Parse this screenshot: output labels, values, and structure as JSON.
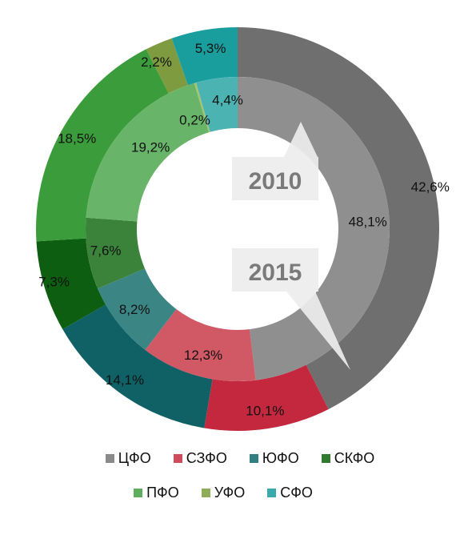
{
  "chart_data": {
    "type": "pie",
    "subtype": "nested-donut",
    "categories": [
      "ЦФО",
      "СЗФО",
      "ЮФО",
      "СКФО",
      "ПФО",
      "УФО",
      "СФО"
    ],
    "colors": {
      "outer": [
        "#706f6f",
        "#c3283e",
        "#0f6166",
        "#0d5e10",
        "#3a9c3a",
        "#7f9b3f",
        "#199d9d"
      ],
      "inner": [
        "#8f8f8f",
        "#d15865",
        "#3b8585",
        "#3b833b",
        "#68b468",
        "#a7c46d",
        "#4cb3b3"
      ],
      "legend": [
        "#8a8a8a",
        "#cd4b5b",
        "#327f82",
        "#2f7a2f",
        "#5eae5e",
        "#8fac59",
        "#3aa9ab"
      ]
    },
    "series": [
      {
        "name": "2015",
        "ring": "outer",
        "values": [
          42.6,
          10.1,
          14.1,
          7.3,
          18.5,
          2.2,
          5.3
        ],
        "labels": [
          "42,6%",
          "10,1%",
          "14,1%",
          "7,3%",
          "18,5%",
          "2,2%",
          "5,3%"
        ]
      },
      {
        "name": "2010",
        "ring": "inner",
        "values": [
          48.1,
          12.3,
          8.2,
          7.6,
          19.2,
          0.2,
          4.4
        ],
        "labels": [
          "48,1%",
          "12,3%",
          "8,2%",
          "7,6%",
          "19,2%",
          "0,2%",
          "4,4%"
        ]
      }
    ],
    "callouts": [
      "2010",
      "2015"
    ],
    "legend_position": "bottom"
  }
}
